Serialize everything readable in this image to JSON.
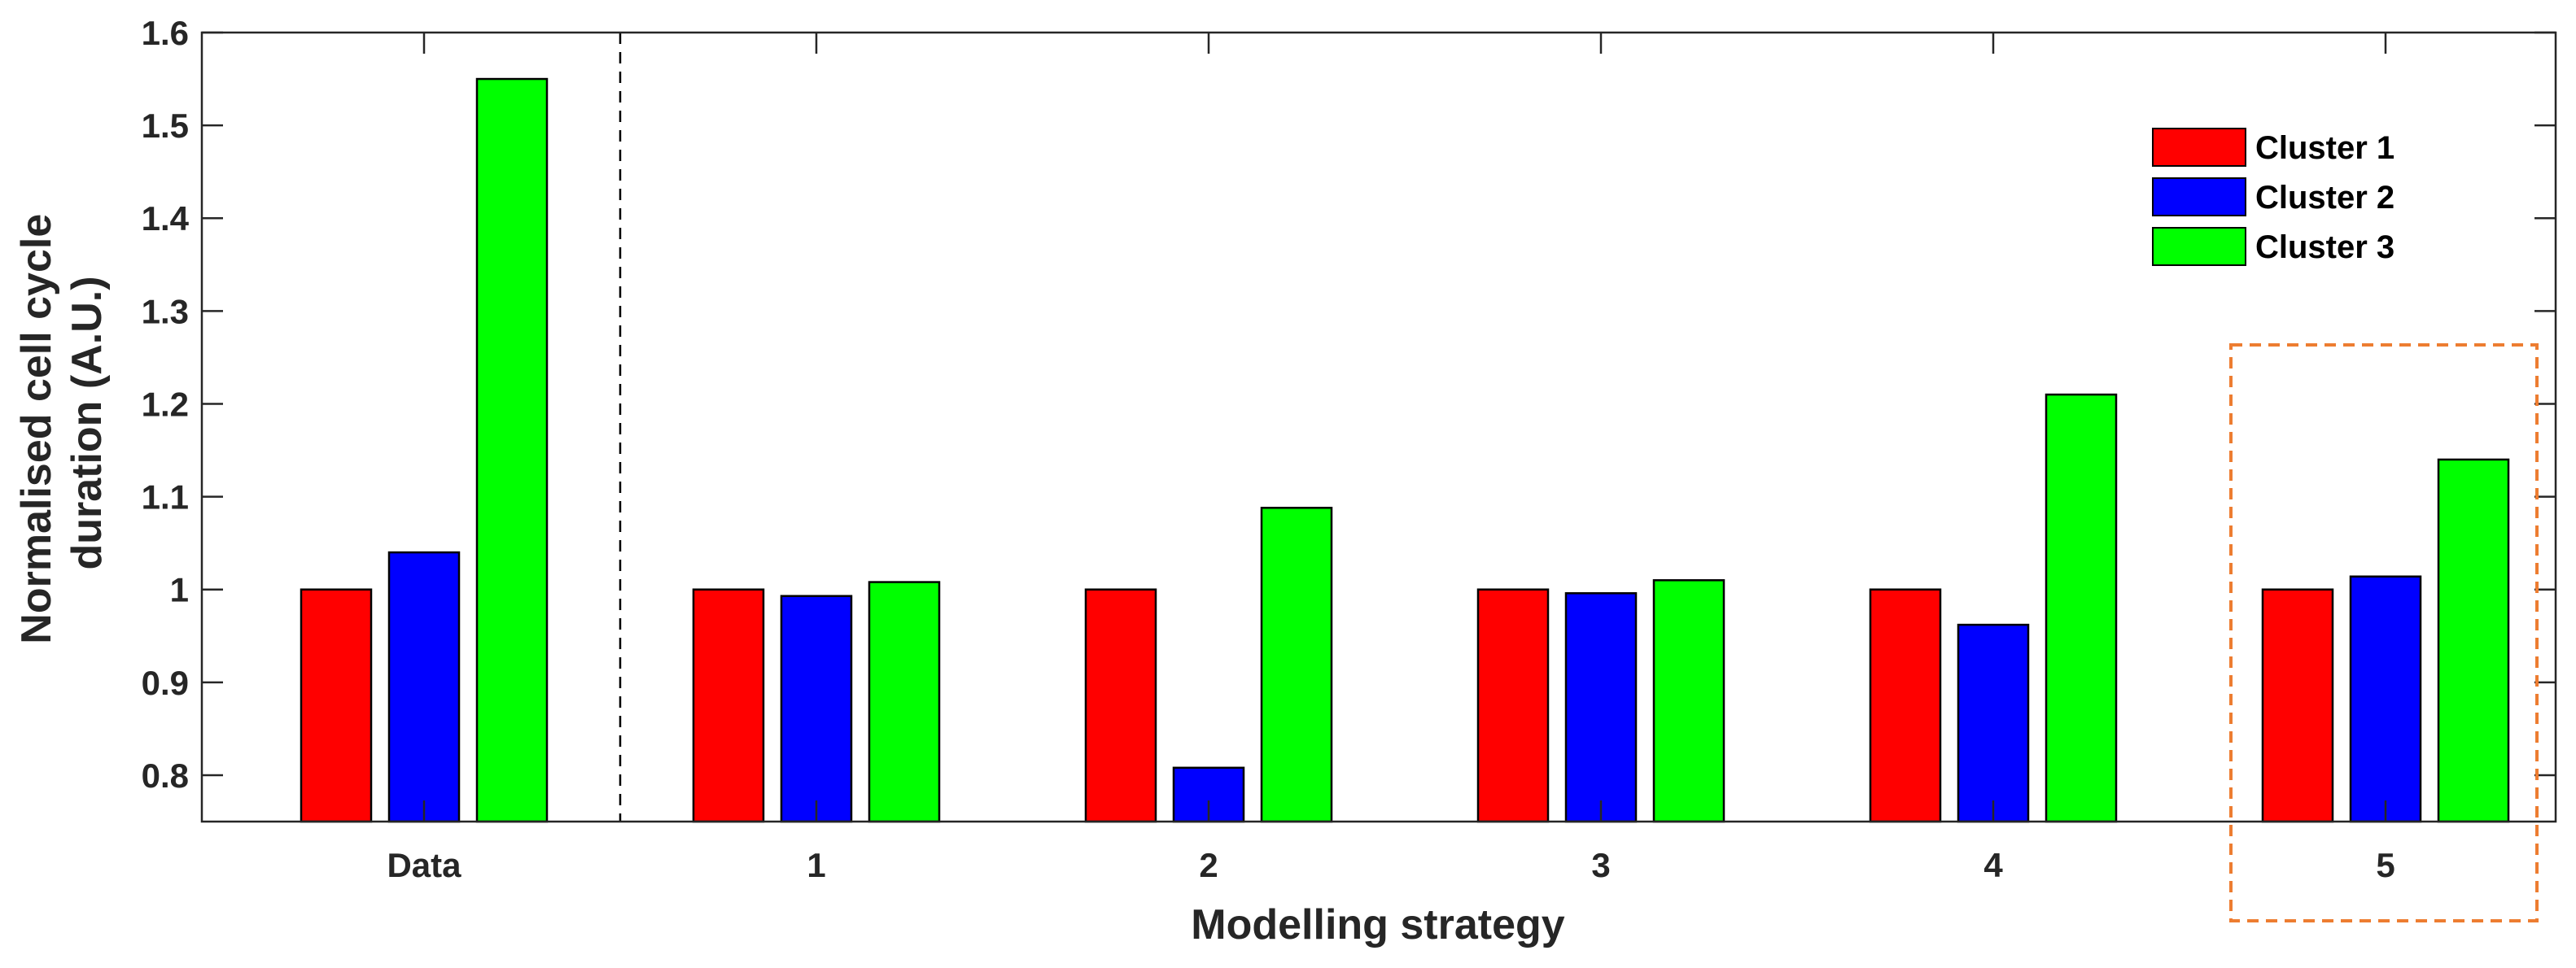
{
  "chart_data": {
    "type": "bar",
    "xlabel": "Modelling strategy",
    "ylabel_lines": [
      "Normalised cell cycle",
      "duration (A.U.)"
    ],
    "categories": [
      "Data",
      "1",
      "2",
      "3",
      "4",
      "5"
    ],
    "series": [
      {
        "name": "Cluster 1",
        "color": "#ff0000",
        "values": [
          1.0,
          1.0,
          1.0,
          1.0,
          1.0,
          1.0
        ]
      },
      {
        "name": "Cluster 2",
        "color": "#0000ff",
        "values": [
          1.04,
          0.993,
          0.808,
          0.996,
          0.962,
          1.014
        ]
      },
      {
        "name": "Cluster 3",
        "color": "#00ff00",
        "values": [
          1.55,
          1.008,
          1.088,
          1.01,
          1.21,
          1.14
        ]
      }
    ],
    "ylim": [
      0.75,
      1.6
    ],
    "yticks": [
      {
        "value": 0.8,
        "label": "0.8"
      },
      {
        "value": 0.9,
        "label": "0.9"
      },
      {
        "value": 1.0,
        "label": "1"
      },
      {
        "value": 1.1,
        "label": "1.1"
      },
      {
        "value": 1.2,
        "label": "1.2"
      },
      {
        "value": 1.3,
        "label": "1.3"
      },
      {
        "value": 1.4,
        "label": "1.4"
      },
      {
        "value": 1.5,
        "label": "1.5"
      },
      {
        "value": 1.6,
        "label": "1.6"
      }
    ],
    "separator_after_category": "Data",
    "highlighted_category": "5",
    "highlight_color": "#ed7d31",
    "legend_position": "top-right",
    "grid": false
  }
}
